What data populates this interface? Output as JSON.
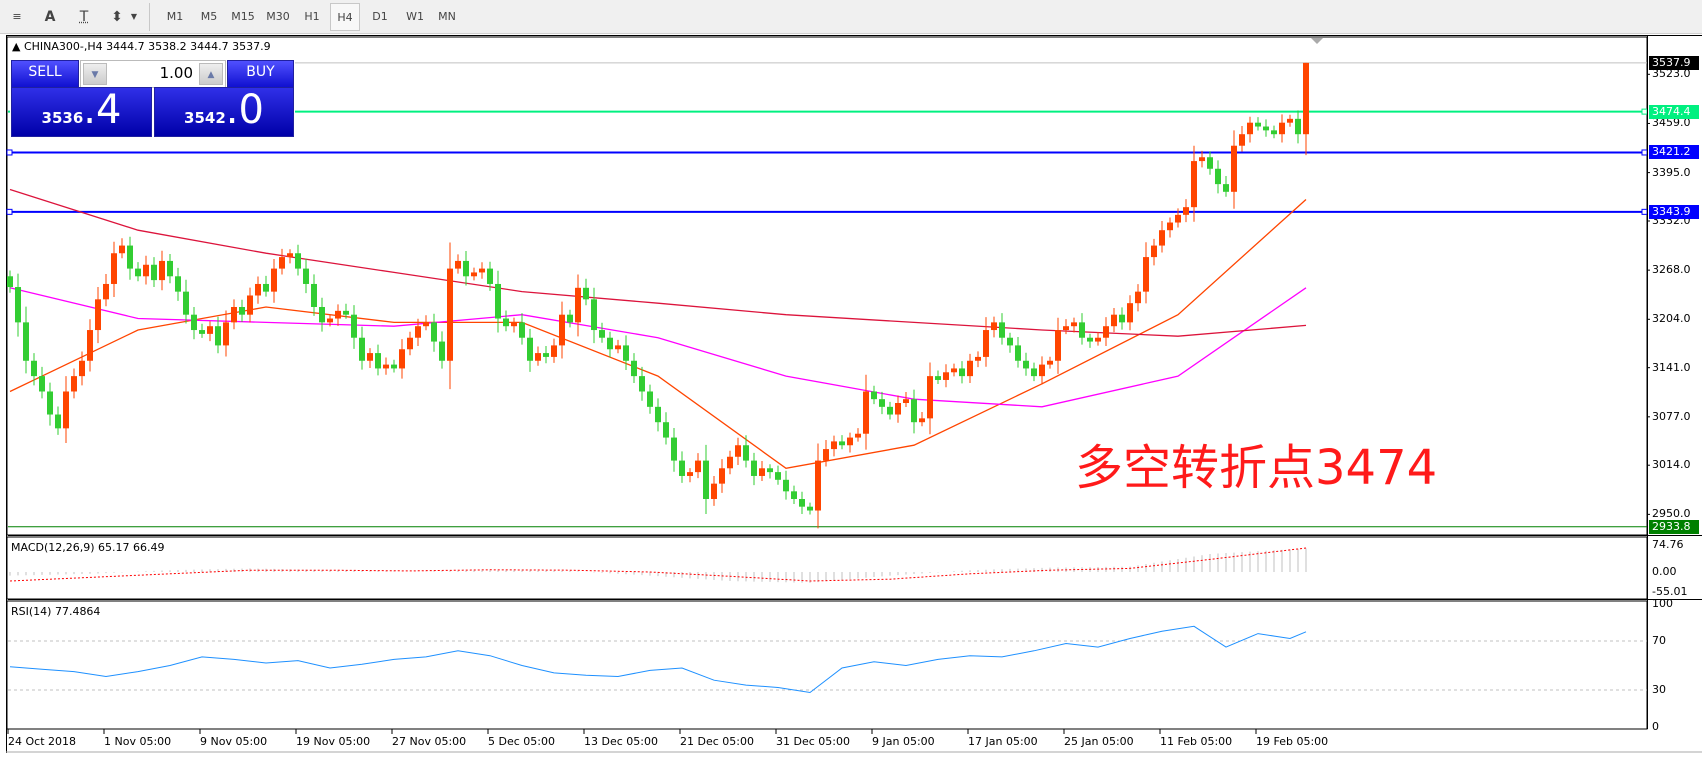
{
  "toolbar": {
    "icons": [
      "horizontal-grid-icon",
      "text-icon",
      "text-label-icon",
      "arrows-dropdown-icon"
    ],
    "icon_glyphs": [
      "≡",
      "A",
      "T",
      "⬍"
    ],
    "timeframes": [
      "M1",
      "M5",
      "M15",
      "M30",
      "H1",
      "H4",
      "D1",
      "W1",
      "MN"
    ],
    "active_timeframe": "H4"
  },
  "chart": {
    "title": "CHINA300-,H4  3444.7 3538.2 3444.7 3537.9",
    "annotation": "多空转折点3474"
  },
  "trade_panel": {
    "sell_label": "SELL",
    "buy_label": "BUY",
    "lot": "1.00",
    "sell_small": "3536",
    "sell_big": ".4",
    "buy_small": "3542",
    "buy_big": ".0"
  },
  "price_axis": {
    "ticks": [
      "3523.0",
      "3459.0",
      "3395.0",
      "3332.0",
      "3268.0",
      "3204.0",
      "3141.0",
      "3077.0",
      "3014.0",
      "2950.0"
    ],
    "tags": [
      {
        "text": "3537.9",
        "color": "#000000"
      },
      {
        "text": "3474.4",
        "color": "#00f080"
      },
      {
        "text": "3421.2",
        "color": "#0000ff"
      },
      {
        "text": "3343.9",
        "color": "#0000ff"
      },
      {
        "text": "2933.8",
        "color": "#008000"
      }
    ]
  },
  "time_axis": [
    "24 Oct 2018",
    "1 Nov 05:00",
    "9 Nov 05:00",
    "19 Nov 05:00",
    "27 Nov 05:00",
    "5 Dec 05:00",
    "13 Dec 05:00",
    "21 Dec 05:00",
    "31 Dec 05:00",
    "9 Jan 05:00",
    "17 Jan 05:00",
    "25 Jan 05:00",
    "11 Feb 05:00",
    "19 Feb 05:00"
  ],
  "macd": {
    "label": "MACD(12,26,9) 65.17 66.49",
    "ticks": [
      "74.76",
      "0.00",
      "-55.01"
    ]
  },
  "rsi": {
    "label": "RSI(14) 77.4864",
    "ticks": [
      "100",
      "70",
      "30",
      "0"
    ]
  },
  "chart_data": {
    "type": "candlestick",
    "symbol": "CHINA300-",
    "timeframe": "H4",
    "up_color": "#ff4500",
    "down_color": "#32cd32",
    "ylim": [
      2933.8,
      3537.9
    ],
    "closes": [
      3246,
      3200,
      3150,
      3130,
      3110,
      3080,
      3062,
      3110,
      3130,
      3150,
      3190,
      3230,
      3250,
      3290,
      3300,
      3270,
      3260,
      3275,
      3255,
      3280,
      3260,
      3240,
      3210,
      3190,
      3185,
      3195,
      3170,
      3200,
      3220,
      3210,
      3235,
      3250,
      3240,
      3270,
      3285,
      3290,
      3270,
      3250,
      3220,
      3200,
      3205,
      3215,
      3210,
      3180,
      3150,
      3160,
      3140,
      3145,
      3140,
      3165,
      3180,
      3195,
      3200,
      3175,
      3150,
      3270,
      3280,
      3260,
      3265,
      3270,
      3250,
      3205,
      3195,
      3200,
      3180,
      3150,
      3160,
      3155,
      3170,
      3210,
      3200,
      3245,
      3230,
      3190,
      3180,
      3165,
      3170,
      3150,
      3130,
      3110,
      3090,
      3070,
      3050,
      3020,
      3000,
      3005,
      3020,
      2970,
      2990,
      3010,
      3025,
      3040,
      3020,
      3000,
      3010,
      3005,
      2995,
      2980,
      2970,
      2960,
      2955,
      3020,
      3035,
      3045,
      3040,
      3050,
      3055,
      3110,
      3100,
      3090,
      3080,
      3095,
      3100,
      3070,
      3075,
      3130,
      3125,
      3135,
      3140,
      3130,
      3150,
      3155,
      3190,
      3200,
      3180,
      3170,
      3150,
      3140,
      3130,
      3145,
      3150,
      3190,
      3195,
      3200,
      3180,
      3175,
      3180,
      3195,
      3210,
      3200,
      3225,
      3240,
      3285,
      3300,
      3320,
      3330,
      3340,
      3350,
      3410,
      3415,
      3400,
      3380,
      3370,
      3430,
      3445,
      3460,
      3455,
      3450,
      3445,
      3460,
      3465,
      3445,
      3537.9
    ],
    "first_open": 3260,
    "moving_averages": [
      {
        "color": "#ff4500",
        "points": [
          [
            0,
            3110
          ],
          [
            16,
            3190
          ],
          [
            32,
            3220
          ],
          [
            48,
            3200
          ],
          [
            64,
            3200
          ],
          [
            81,
            3130
          ],
          [
            97,
            3010
          ],
          [
            113,
            3040
          ],
          [
            129,
            3120
          ],
          [
            146,
            3210
          ],
          [
            162,
            3360
          ]
        ]
      },
      {
        "color": "#ff00ff",
        "points": [
          [
            0,
            3245
          ],
          [
            16,
            3205
          ],
          [
            32,
            3200
          ],
          [
            48,
            3195
          ],
          [
            64,
            3210
          ],
          [
            81,
            3180
          ],
          [
            97,
            3130
          ],
          [
            113,
            3100
          ],
          [
            129,
            3090
          ],
          [
            146,
            3130
          ],
          [
            162,
            3245
          ]
        ]
      },
      {
        "color": "#dc143c",
        "points": [
          [
            0,
            3373
          ],
          [
            16,
            3320
          ],
          [
            32,
            3290
          ],
          [
            48,
            3265
          ],
          [
            64,
            3240
          ],
          [
            81,
            3225
          ],
          [
            97,
            3210
          ],
          [
            113,
            3200
          ],
          [
            129,
            3190
          ],
          [
            146,
            3182
          ],
          [
            162,
            3196
          ]
        ]
      }
    ],
    "horizontal_lines": [
      {
        "price": 3537.9,
        "color": "#c0c0c0"
      },
      {
        "price": 3474.4,
        "color": "#00f080"
      },
      {
        "price": 3421.2,
        "color": "#0000ff"
      },
      {
        "price": 3343.9,
        "color": "#0000ff"
      },
      {
        "price": 2933.8,
        "color": "#008000"
      }
    ],
    "macd": {
      "range": [
        -55.01,
        74.76
      ],
      "hist_color": "#c0c0c0",
      "signal_color": "#ff0000",
      "hist": [
        [
          0,
          -10
        ],
        [
          10,
          -5
        ],
        [
          20,
          5
        ],
        [
          30,
          10
        ],
        [
          40,
          5
        ],
        [
          50,
          0
        ],
        [
          60,
          5
        ],
        [
          70,
          3
        ],
        [
          80,
          -10
        ],
        [
          90,
          -25
        ],
        [
          100,
          -30
        ],
        [
          110,
          -10
        ],
        [
          120,
          5
        ],
        [
          130,
          12
        ],
        [
          140,
          15
        ],
        [
          150,
          50
        ],
        [
          162,
          65.17
        ]
      ],
      "signal": [
        [
          0,
          -25
        ],
        [
          10,
          -15
        ],
        [
          20,
          -5
        ],
        [
          30,
          5
        ],
        [
          40,
          5
        ],
        [
          50,
          3
        ],
        [
          60,
          6
        ],
        [
          70,
          5
        ],
        [
          80,
          0
        ],
        [
          90,
          -12
        ],
        [
          100,
          -25
        ],
        [
          110,
          -20
        ],
        [
          120,
          -5
        ],
        [
          130,
          5
        ],
        [
          140,
          10
        ],
        [
          150,
          35
        ],
        [
          162,
          66.49
        ]
      ]
    },
    "rsi": {
      "range": [
        0,
        100
      ],
      "levels": [
        70,
        30
      ],
      "color": "#1e90ff",
      "points": [
        [
          0,
          49
        ],
        [
          4,
          47
        ],
        [
          8,
          45
        ],
        [
          12,
          41
        ],
        [
          16,
          45
        ],
        [
          20,
          50
        ],
        [
          24,
          57
        ],
        [
          28,
          55
        ],
        [
          32,
          52
        ],
        [
          36,
          54
        ],
        [
          40,
          48
        ],
        [
          44,
          51
        ],
        [
          48,
          55
        ],
        [
          52,
          57
        ],
        [
          56,
          62
        ],
        [
          60,
          58
        ],
        [
          64,
          50
        ],
        [
          68,
          44
        ],
        [
          72,
          42
        ],
        [
          76,
          41
        ],
        [
          80,
          46
        ],
        [
          84,
          48
        ],
        [
          88,
          38
        ],
        [
          92,
          34
        ],
        [
          96,
          32
        ],
        [
          100,
          28
        ],
        [
          104,
          48
        ],
        [
          108,
          53
        ],
        [
          112,
          50
        ],
        [
          116,
          55
        ],
        [
          120,
          58
        ],
        [
          124,
          57
        ],
        [
          128,
          62
        ],
        [
          132,
          68
        ],
        [
          136,
          65
        ],
        [
          140,
          72
        ],
        [
          144,
          78
        ],
        [
          148,
          82
        ],
        [
          152,
          65
        ],
        [
          156,
          76
        ],
        [
          160,
          72
        ],
        [
          162,
          77.49
        ]
      ]
    }
  }
}
